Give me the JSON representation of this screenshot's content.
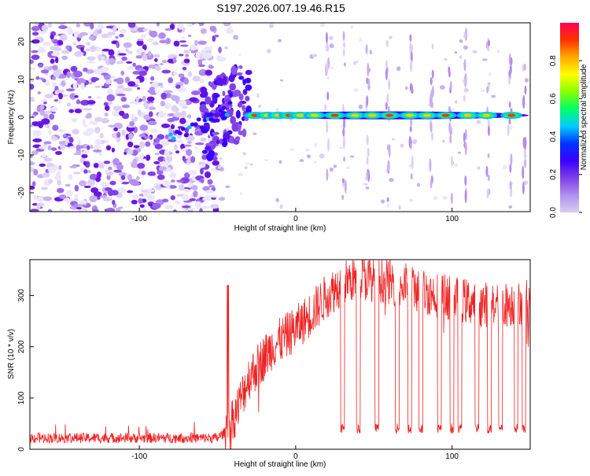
{
  "title": "S197.2026.007.19.46.R15",
  "chart_data": [
    {
      "type": "heatmap",
      "xlabel": "Height of straight line (km)",
      "ylabel": "Frequency (Hz)",
      "xlim": [
        -170,
        150
      ],
      "ylim": [
        -25,
        25
      ],
      "xticks": [
        -100,
        0,
        100
      ],
      "yticks": [
        -20,
        -10,
        0,
        10,
        20
      ],
      "colorbar": {
        "label": "Normalized spectral amplitude",
        "range": [
          0,
          1
        ],
        "ticks": [
          "0.0",
          "0.2",
          "0.4",
          "0.6",
          "0.8"
        ],
        "tick_values": [
          0.0,
          0.2,
          0.4,
          0.6,
          0.8
        ],
        "colors": [
          "#d8d0f0",
          "#b090ee",
          "#7f3fe6",
          "#3a00ff",
          "#0033ff",
          "#00ccff",
          "#00ff66",
          "#88ff00",
          "#ffff00",
          "#ffaa00",
          "#ff3300",
          "#ff0055"
        ]
      },
      "noise_region_km": [
        -170,
        -52
      ],
      "tone_region_km": [
        -32,
        150
      ],
      "tone_frequency_hz": 0.5,
      "tone_segment_centers_km": [
        -26,
        -18,
        -11,
        -4,
        3,
        12,
        25,
        38,
        49,
        60,
        73,
        84,
        96,
        110,
        122,
        138
      ]
    },
    {
      "type": "line",
      "xlabel": "Height of straight line (km)",
      "ylabel": "SNR (10 * v/v)",
      "xlim": [
        -170,
        150
      ],
      "ylim": [
        0,
        370
      ],
      "xticks": [
        -100,
        0,
        100
      ],
      "yticks": [
        0,
        100,
        200,
        300
      ],
      "color": "#ee2222",
      "x_knots": [
        -170,
        -50,
        -42,
        -30,
        -15,
        0,
        10,
        20,
        30,
        40,
        55,
        70,
        85,
        100,
        115,
        130,
        150
      ],
      "y_knots": [
        22,
        22,
        40,
        140,
        200,
        235,
        265,
        300,
        325,
        335,
        330,
        320,
        305,
        295,
        285,
        280,
        290
      ],
      "dropouts_km": [
        30,
        40,
        52,
        65,
        73,
        80,
        92,
        100,
        105,
        116,
        124,
        131,
        141,
        146
      ],
      "dropout_level": 30,
      "noise_amplitude_quiet": 10,
      "noise_amplitude_rise": 45
    }
  ]
}
